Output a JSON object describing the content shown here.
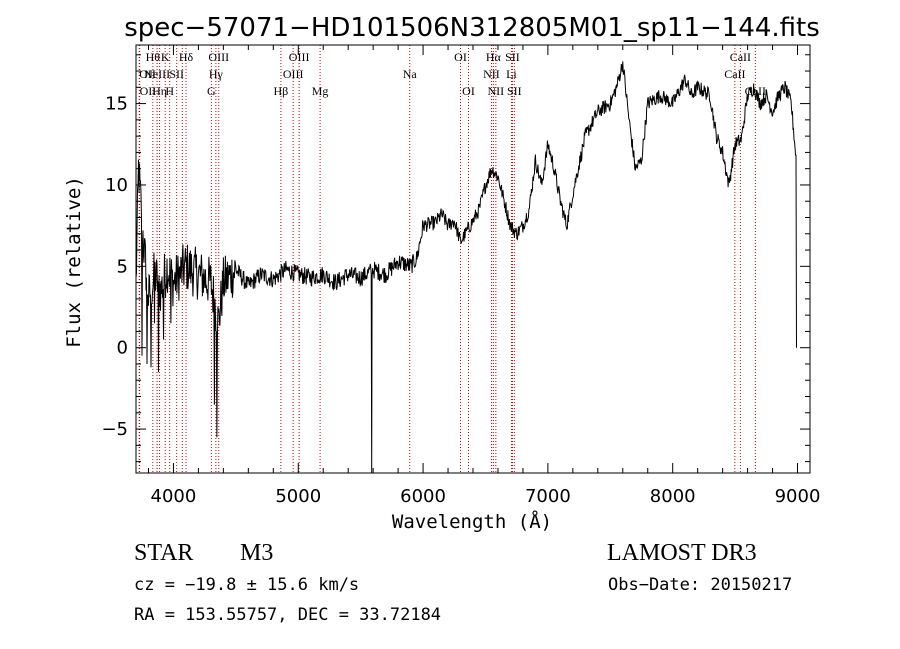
{
  "chart_data": {
    "type": "line",
    "title": "spec−57071−HD101506N312805M01_sp11−144.fits",
    "xlabel": "Wavelength (Å)",
    "ylabel": "Flux (relative)",
    "xlim": [
      3700,
      9100
    ],
    "ylim": [
      -7.7,
      18.6
    ],
    "xticks": [
      4000,
      5000,
      6000,
      7000,
      8000,
      9000
    ],
    "yticks": [
      -5,
      0,
      5,
      10,
      15
    ],
    "series": [
      {
        "name": "flux",
        "anchors": [
          [
            3700,
            3.8
          ],
          [
            3720,
            11.0
          ],
          [
            3760,
            6.5
          ],
          [
            3800,
            3.0
          ],
          [
            3850,
            4.5
          ],
          [
            3900,
            3.5
          ],
          [
            3950,
            5.0
          ],
          [
            4000,
            4.0
          ],
          [
            4100,
            5.0
          ],
          [
            4200,
            4.5
          ],
          [
            4300,
            4.0
          ],
          [
            4360,
            1.5
          ],
          [
            4400,
            4.0
          ],
          [
            4500,
            4.8
          ],
          [
            4600,
            3.8
          ],
          [
            4700,
            4.5
          ],
          [
            4800,
            4.2
          ],
          [
            4900,
            4.8
          ],
          [
            5000,
            4.5
          ],
          [
            5100,
            4.3
          ],
          [
            5200,
            4.5
          ],
          [
            5300,
            4.0
          ],
          [
            5400,
            4.5
          ],
          [
            5500,
            4.3
          ],
          [
            5600,
            4.8
          ],
          [
            5700,
            4.5
          ],
          [
            5800,
            5.3
          ],
          [
            5900,
            5.0
          ],
          [
            5950,
            5.5
          ],
          [
            6000,
            7.5
          ],
          [
            6100,
            7.7
          ],
          [
            6150,
            8.2
          ],
          [
            6200,
            7.5
          ],
          [
            6250,
            7.8
          ],
          [
            6300,
            6.5
          ],
          [
            6400,
            7.8
          ],
          [
            6450,
            8.5
          ],
          [
            6500,
            10.0
          ],
          [
            6550,
            11.0
          ],
          [
            6600,
            10.5
          ],
          [
            6650,
            9.0
          ],
          [
            6700,
            7.5
          ],
          [
            6750,
            7.0
          ],
          [
            6800,
            7.5
          ],
          [
            6850,
            8.5
          ],
          [
            6900,
            11.5
          ],
          [
            6950,
            10.0
          ],
          [
            7000,
            12.5
          ],
          [
            7050,
            11.0
          ],
          [
            7100,
            9.0
          ],
          [
            7150,
            7.5
          ],
          [
            7200,
            9.5
          ],
          [
            7300,
            13.0
          ],
          [
            7400,
            14.5
          ],
          [
            7500,
            15.0
          ],
          [
            7550,
            16.0
          ],
          [
            7600,
            17.5
          ],
          [
            7650,
            14.0
          ],
          [
            7700,
            11.0
          ],
          [
            7750,
            11.5
          ],
          [
            7800,
            15.0
          ],
          [
            7900,
            15.5
          ],
          [
            8000,
            15.0
          ],
          [
            8100,
            16.5
          ],
          [
            8150,
            15.5
          ],
          [
            8200,
            16.0
          ],
          [
            8300,
            15.5
          ],
          [
            8350,
            13.0
          ],
          [
            8400,
            12.0
          ],
          [
            8450,
            10.0
          ],
          [
            8500,
            12.5
          ],
          [
            8550,
            12.8
          ],
          [
            8600,
            15.5
          ],
          [
            8650,
            16.0
          ],
          [
            8700,
            15.0
          ],
          [
            8750,
            15.5
          ],
          [
            8800,
            14.5
          ],
          [
            8850,
            15.5
          ],
          [
            8900,
            16.0
          ],
          [
            8950,
            15.0
          ],
          [
            8990,
            11.5
          ]
        ],
        "dips": [
          [
            3750,
            -0.5
          ],
          [
            3790,
            -1.0
          ],
          [
            3820,
            -1.2
          ],
          [
            3850,
            1.5
          ],
          [
            3880,
            -1.5
          ],
          [
            3920,
            0.5
          ],
          [
            3980,
            1.5
          ],
          [
            4330,
            -3.5
          ],
          [
            4350,
            -5.5
          ],
          [
            5590,
            -7.7
          ]
        ]
      }
    ],
    "lines": {
      "emission": [
        {
          "w": 3726,
          "t": "OII",
          "row": 1,
          "anchor": "start"
        },
        {
          "w": 3729,
          "t": "OII",
          "row": 2,
          "anchor": "start"
        },
        {
          "w": 3835,
          "t": "Hθ",
          "row": 0,
          "anchor": "middle"
        },
        {
          "w": 3869,
          "t": "NeIII",
          "row": 1,
          "anchor": "middle"
        },
        {
          "w": 3889,
          "t": "Hη",
          "row": 2,
          "anchor": "middle"
        },
        {
          "w": 3970,
          "t": "H",
          "row": 2,
          "anchor": "middle"
        },
        {
          "w": 3934,
          "t": "K",
          "row": 0,
          "anchor": "middle"
        },
        {
          "w": 4026,
          "t": "SII",
          "row": 1,
          "anchor": "middle"
        },
        {
          "w": 4071,
          "t": "",
          "row": 1,
          "anchor": "middle"
        },
        {
          "w": 4101,
          "t": "Hδ",
          "row": 0,
          "anchor": "middle"
        },
        {
          "w": 4304,
          "t": "G",
          "row": 2,
          "anchor": "middle"
        },
        {
          "w": 4340,
          "t": "Hγ",
          "row": 1,
          "anchor": "middle"
        },
        {
          "w": 4363,
          "t": "OIII",
          "row": 0,
          "anchor": "middle"
        },
        {
          "w": 4861,
          "t": "Hβ",
          "row": 2,
          "anchor": "middle"
        },
        {
          "w": 4959,
          "t": "OIII",
          "row": 1,
          "anchor": "middle"
        },
        {
          "w": 5007,
          "t": "OIII",
          "row": 0,
          "anchor": "middle"
        },
        {
          "w": 5175,
          "t": "Mg",
          "row": 2,
          "anchor": "middle"
        },
        {
          "w": 5893,
          "t": "Na",
          "row": 1,
          "anchor": "middle"
        },
        {
          "w": 6300,
          "t": "OI",
          "row": 0,
          "anchor": "middle"
        },
        {
          "w": 6364,
          "t": "OI",
          "row": 2,
          "anchor": "middle"
        },
        {
          "w": 6548,
          "t": "NII",
          "row": 1,
          "anchor": "middle"
        },
        {
          "w": 6563,
          "t": "Hα",
          "row": 0,
          "anchor": "middle"
        },
        {
          "w": 6583,
          "t": "NII",
          "row": 2,
          "anchor": "middle"
        },
        {
          "w": 6708,
          "t": "Li",
          "row": 1,
          "anchor": "middle"
        },
        {
          "w": 6716,
          "t": "SII",
          "row": 0,
          "anchor": "middle"
        },
        {
          "w": 6731,
          "t": "SII",
          "row": 2,
          "anchor": "middle"
        },
        {
          "w": 8498,
          "t": "CaII",
          "row": 1,
          "anchor": "middle"
        },
        {
          "w": 8542,
          "t": "CaII",
          "row": 0,
          "anchor": "middle"
        },
        {
          "w": 8662,
          "t": "CaII",
          "row": 2,
          "anchor": "middle"
        }
      ]
    },
    "colors": {
      "spectrum": "#000000",
      "linemarker": "#cc0000",
      "axis": "#000000"
    }
  },
  "info": {
    "object_type": "STAR",
    "subclass": "M3",
    "survey": "LAMOST DR3",
    "cz_line": "cz = −19.8 ± 15.6 km/s",
    "obs_date_line": "Obs−Date: 20150217",
    "coords_line": "RA = 153.55757, DEC =  33.72184"
  }
}
